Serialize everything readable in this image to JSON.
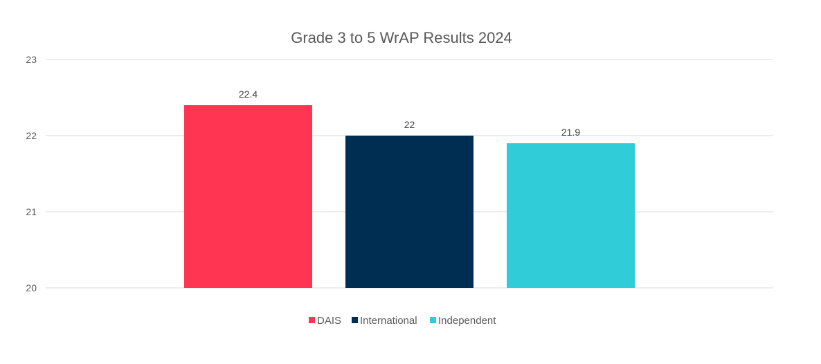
{
  "chart_data": {
    "type": "bar",
    "title": "Grade 3 to 5 WrAP Results 2024",
    "xlabel": "",
    "ylabel": "",
    "ylim": [
      20,
      23
    ],
    "yticks": [
      "20",
      "21",
      "22",
      "23"
    ],
    "grid": true,
    "legend_position": "bottom",
    "categories": [
      "DAIS",
      "International",
      "Independent"
    ],
    "series": [
      {
        "name": "DAIS",
        "value": 22.4,
        "label": "22.4",
        "color": "#FF3551"
      },
      {
        "name": "International",
        "value": 22,
        "label": "22",
        "color": "#002E53"
      },
      {
        "name": "Independent",
        "value": 21.9,
        "label": "21.9",
        "color": "#30CCD8"
      }
    ]
  }
}
